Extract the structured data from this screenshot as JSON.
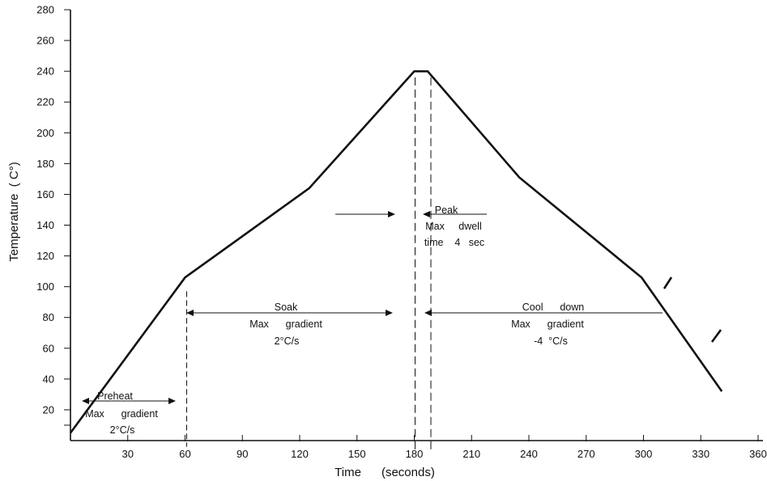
{
  "chart_data": {
    "type": "line",
    "title": "",
    "xlabel": "Time      (seconds)",
    "ylabel": "Temperature  ( C°)",
    "xlim": [
      0,
      360
    ],
    "ylim": [
      0,
      280
    ],
    "x_ticks": [
      30,
      60,
      90,
      120,
      150,
      180,
      210,
      240,
      270,
      300,
      330,
      360
    ],
    "y_ticks": [
      20,
      40,
      60,
      80,
      100,
      120,
      140,
      160,
      180,
      200,
      220,
      240,
      260,
      280
    ],
    "grid": false,
    "legend": "none",
    "series": [
      {
        "x": [
          0,
          60,
          125,
          180,
          187,
          235,
          299,
          341
        ],
        "y": [
          5,
          106,
          164,
          240,
          240,
          171,
          106,
          32
        ]
      }
    ],
    "annotations": {
      "preheat": {
        "title": "Preheat",
        "line1": "Max      gradient",
        "line2": "2°C/s"
      },
      "soak": {
        "title": "Soak",
        "line1": "Max      gradient",
        "line2": "2°C/s"
      },
      "peak": {
        "title": "Peak",
        "line1": "Max     dwell",
        "line2": "time    4   sec"
      },
      "cooldown": {
        "title": "Cool      down",
        "line1": "Max      gradient",
        "line2": "-4  °C/s"
      }
    },
    "markers": {
      "preheat_end_x": 60,
      "peak_start_x": 180,
      "peak_end_x": 187
    }
  }
}
